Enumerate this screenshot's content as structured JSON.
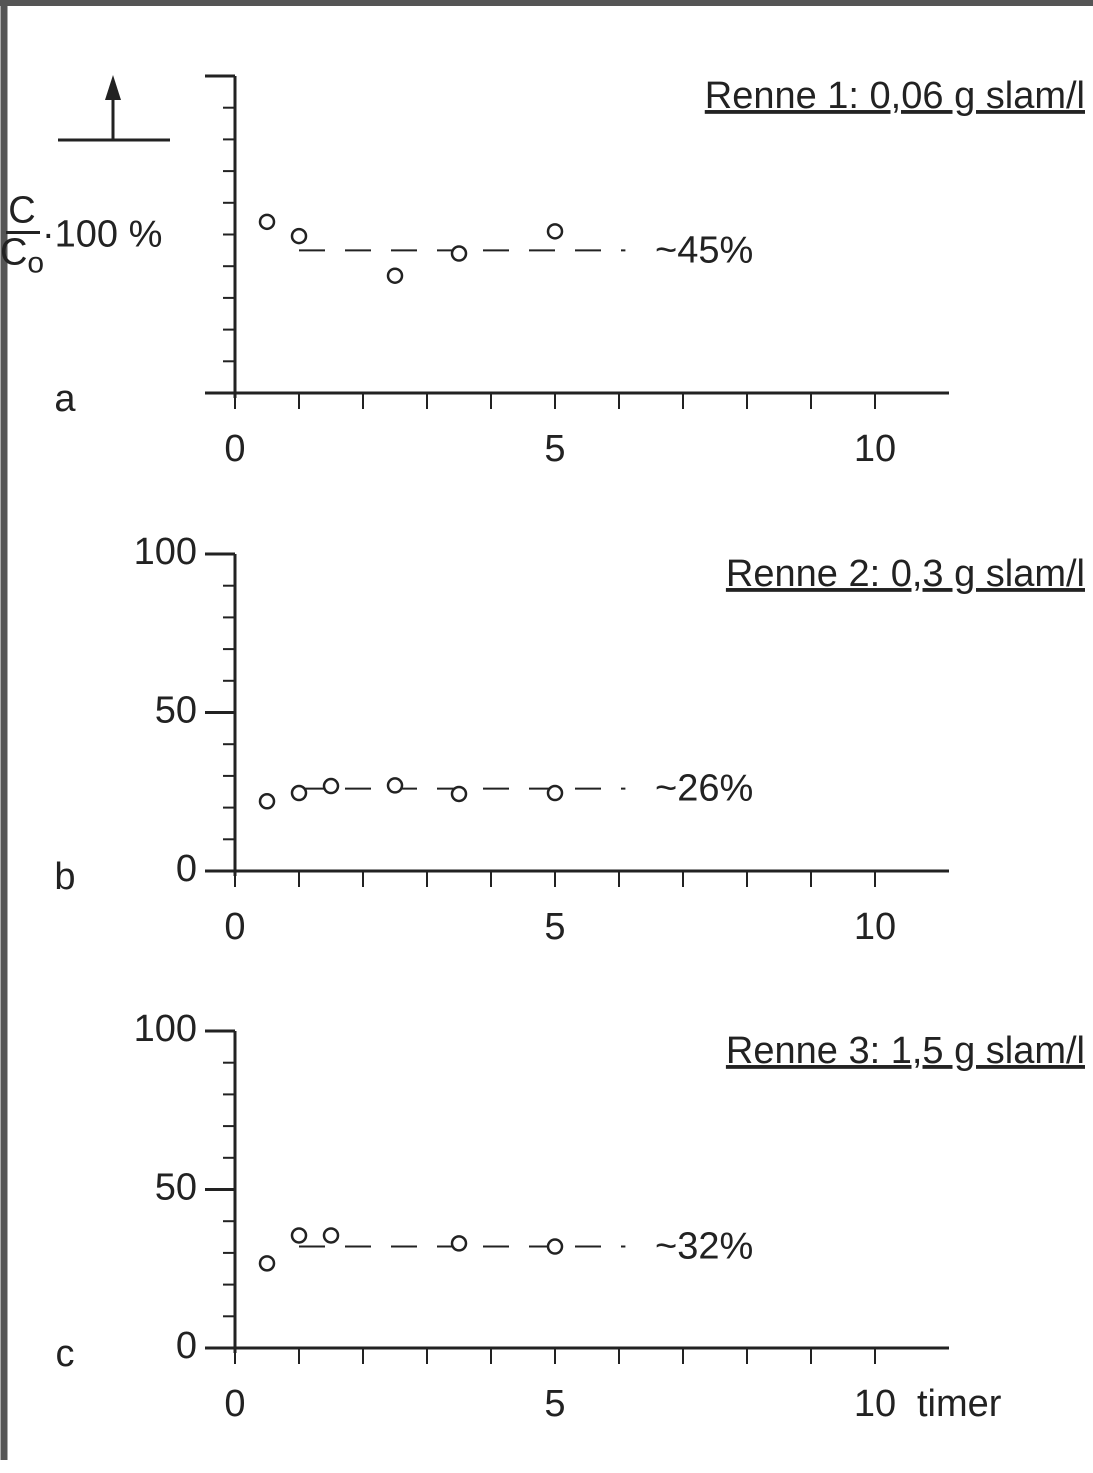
{
  "chart_data": [
    {
      "type": "scatter",
      "label": "a",
      "title": "Renne 1: 0,06 g slam/l",
      "ylabel": {
        "numerator": "C",
        "denominator": "C",
        "subscript": "o",
        "rest": "·100 %"
      },
      "x": [
        0.5,
        1,
        2.5,
        3.5,
        5
      ],
      "values": [
        54,
        49.5,
        37,
        44,
        51
      ],
      "hline": 45,
      "annotation": "~45%",
      "xlim": [
        0,
        11
      ],
      "ylim": [
        0,
        100
      ],
      "xticks": [
        0,
        5,
        10
      ],
      "xminor": [
        0,
        1,
        2,
        3,
        4,
        5,
        6,
        7,
        8,
        9,
        10
      ],
      "yticks": [],
      "yminor": [
        0,
        10,
        20,
        30,
        40,
        50,
        60,
        70,
        80,
        90,
        100
      ]
    },
    {
      "type": "scatter",
      "label": "b",
      "title": "Renne 2: 0,3 g slam/l",
      "x": [
        0.5,
        1,
        1.5,
        2.5,
        3.5,
        5
      ],
      "values": [
        22,
        24.6,
        26.8,
        27,
        24.3,
        24.6
      ],
      "hline": 26,
      "annotation": "~26%",
      "xlim": [
        0,
        11
      ],
      "ylim": [
        0,
        100
      ],
      "xticks": [
        0,
        5,
        10
      ],
      "xminor": [
        0,
        1,
        2,
        3,
        4,
        5,
        6,
        7,
        8,
        9,
        10
      ],
      "yticks": [
        0,
        50,
        100
      ],
      "yminor": [
        0,
        10,
        20,
        30,
        40,
        50,
        60,
        70,
        80,
        90,
        100
      ]
    },
    {
      "type": "scatter",
      "label": "c",
      "title": "Renne 3: 1,5 g slam/l",
      "xlabel": "timer",
      "x": [
        0.5,
        1,
        1.5,
        3.5,
        5
      ],
      "values": [
        26.7,
        35.5,
        35.5,
        33,
        32
      ],
      "hline": 32,
      "annotation": "~32%",
      "xlim": [
        0,
        11
      ],
      "ylim": [
        0,
        100
      ],
      "xticks": [
        0,
        5,
        10
      ],
      "xminor": [
        0,
        1,
        2,
        3,
        4,
        5,
        6,
        7,
        8,
        9,
        10
      ],
      "yticks": [
        0,
        50,
        100
      ],
      "yminor": [
        0,
        10,
        20,
        30,
        40,
        50,
        60,
        70,
        80,
        90,
        100
      ]
    }
  ]
}
